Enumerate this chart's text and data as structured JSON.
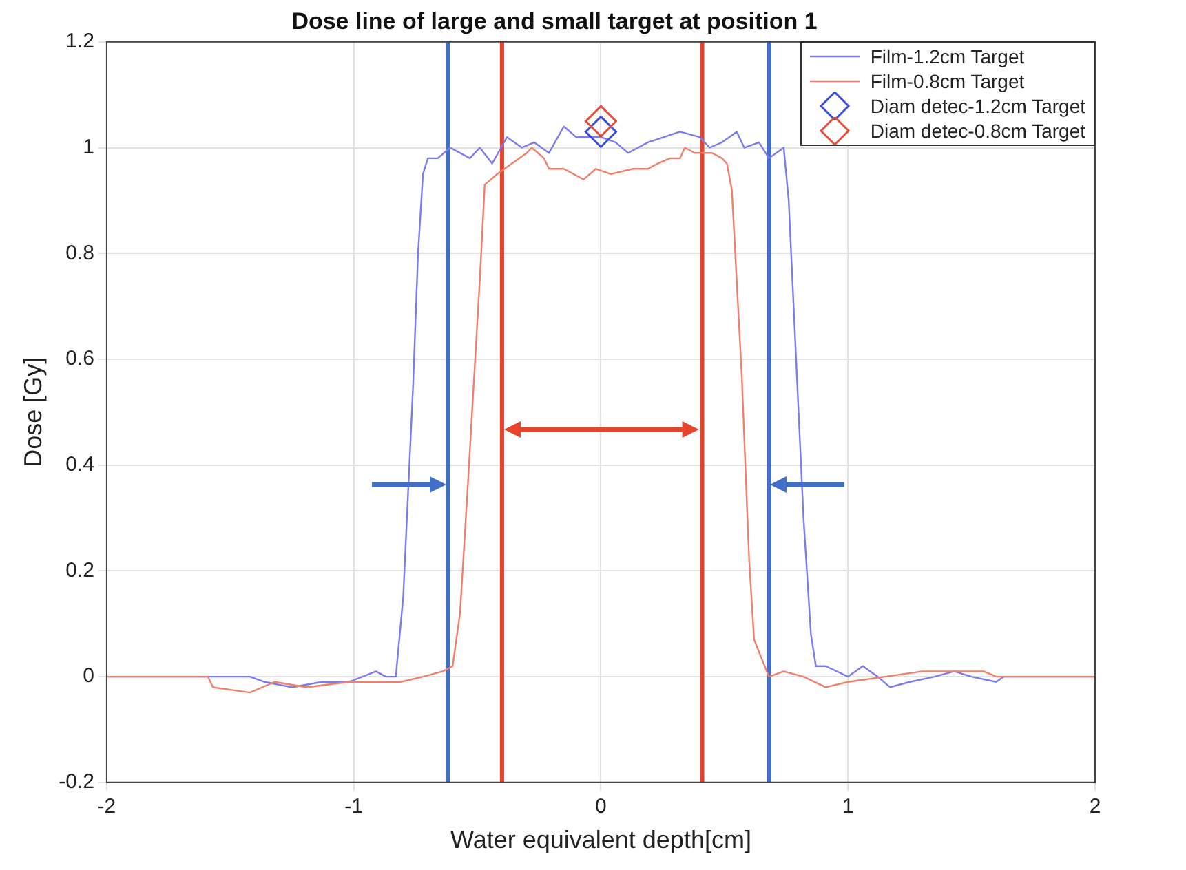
{
  "chart_data": {
    "type": "line",
    "title": "Dose line of large and small target at position 1",
    "xlabel": "Water equivalent depth[cm]",
    "ylabel": "Dose [Gy]",
    "xlim": [
      -2,
      2
    ],
    "xticks": [
      -2,
      -1,
      0,
      1,
      2
    ],
    "ylim": [
      -0.2,
      1.2
    ],
    "yticks": [
      -0.2,
      0,
      0.2,
      0.4,
      0.6,
      0.8,
      1,
      1.2
    ],
    "grid": true,
    "legend": "top right",
    "series": [
      {
        "name": "Film-1.2cm Target",
        "type": "line",
        "color": "#7c7cf0",
        "marker": "none",
        "line_style": "solid",
        "x": [
          -2,
          -1.42,
          -1.36,
          -1.25,
          -1.13,
          -1.02,
          -0.91,
          -0.87,
          -0.83,
          -0.8,
          -0.78,
          -0.76,
          -0.74,
          -0.72,
          -0.7,
          -0.66,
          -0.61,
          -0.53,
          -0.49,
          -0.44,
          -0.38,
          -0.32,
          -0.27,
          -0.21,
          -0.15,
          -0.1,
          0,
          0.06,
          0.11,
          0.19,
          0.32,
          0.4,
          0.44,
          0.49,
          0.55,
          0.58,
          0.64,
          0.68,
          0.74,
          0.76,
          0.78,
          0.8,
          0.82,
          0.85,
          0.87,
          0.91,
          1.0,
          1.06,
          1.12,
          1.17,
          1.25,
          1.35,
          1.43,
          1.5,
          1.6,
          1.63,
          2
        ],
        "values": [
          0,
          0,
          -0.01,
          -0.02,
          -0.01,
          -0.01,
          0.01,
          0,
          0,
          0.15,
          0.35,
          0.55,
          0.8,
          0.95,
          0.98,
          0.98,
          1.0,
          0.98,
          1.0,
          0.97,
          1.02,
          1.0,
          1.01,
          0.99,
          1.04,
          1.02,
          1.02,
          1.01,
          0.99,
          1.01,
          1.03,
          1.02,
          1.0,
          1.01,
          1.03,
          1.0,
          1.01,
          0.98,
          1.0,
          0.9,
          0.7,
          0.5,
          0.3,
          0.08,
          0.02,
          0.02,
          0,
          0.02,
          0,
          -0.02,
          -0.01,
          0,
          0.01,
          0,
          -0.01,
          0,
          0
        ]
      },
      {
        "name": "Film-0.8cm Target",
        "type": "line",
        "color": "#f0806c",
        "marker": "none",
        "line_style": "solid",
        "x": [
          -2,
          -1.59,
          -1.57,
          -1.42,
          -1.32,
          -1.19,
          -1.02,
          -0.9,
          -0.81,
          -0.72,
          -0.64,
          -0.6,
          -0.57,
          -0.54,
          -0.51,
          -0.49,
          -0.47,
          -0.42,
          -0.36,
          -0.3,
          -0.28,
          -0.23,
          -0.21,
          -0.15,
          -0.07,
          -0.02,
          0.04,
          0.13,
          0.19,
          0.23,
          0.28,
          0.32,
          0.34,
          0.38,
          0.45,
          0.49,
          0.51,
          0.53,
          0.57,
          0.6,
          0.62,
          0.68,
          0.74,
          0.82,
          0.91,
          1.0,
          1.15,
          1.3,
          1.45,
          1.55,
          1.6,
          2
        ],
        "values": [
          0,
          0,
          -0.02,
          -0.03,
          -0.01,
          -0.02,
          -0.01,
          -0.01,
          -0.01,
          0,
          0.01,
          0.02,
          0.12,
          0.35,
          0.59,
          0.75,
          0.93,
          0.95,
          0.97,
          0.99,
          1.0,
          0.98,
          0.96,
          0.96,
          0.94,
          0.96,
          0.95,
          0.96,
          0.96,
          0.97,
          0.98,
          0.98,
          1.0,
          0.99,
          0.99,
          0.98,
          0.97,
          0.92,
          0.57,
          0.22,
          0.07,
          0,
          0.01,
          0,
          -0.02,
          -0.01,
          0,
          0.01,
          0.01,
          0.01,
          0,
          0
        ]
      },
      {
        "name": "Diam detec-1.2cm Target",
        "type": "scatter",
        "color": "#3a4fe0",
        "marker": "diamond",
        "x": [
          0
        ],
        "values": [
          1.03
        ]
      },
      {
        "name": "Diam detec-0.8cm Target",
        "type": "scatter",
        "color": "#e8503a",
        "marker": "diamond",
        "x": [
          0
        ],
        "values": [
          1.05
        ]
      }
    ],
    "ref_lines": [
      {
        "axis": "x",
        "value": -0.62,
        "color": "#3f6fc8",
        "line_style": "solid"
      },
      {
        "axis": "x",
        "value": 0.68,
        "color": "#3f6fc8",
        "line_style": "solid"
      },
      {
        "axis": "x",
        "value": -0.4,
        "color": "#e8432b",
        "line_style": "solid"
      },
      {
        "axis": "x",
        "value": 0.41,
        "color": "#e8432b",
        "line_style": "solid"
      }
    ]
  }
}
